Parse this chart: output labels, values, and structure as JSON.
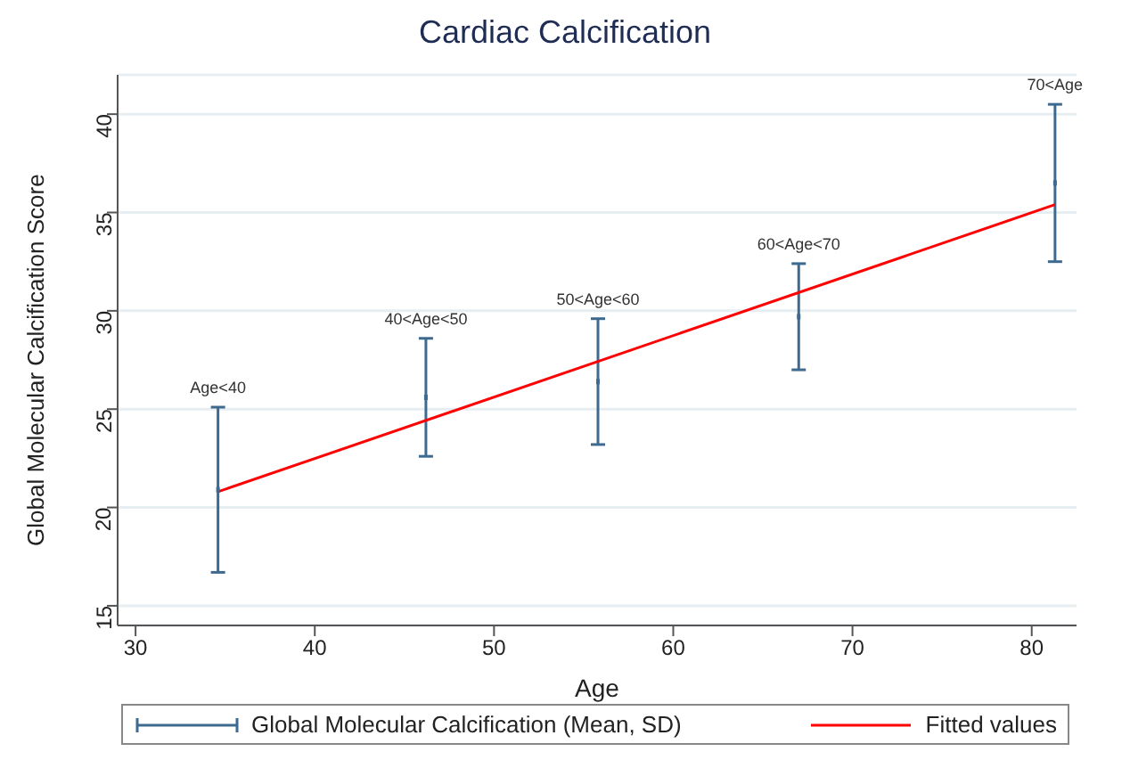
{
  "chart_data": {
    "type": "scatter",
    "title": "Cardiac Calcification",
    "xlabel": "Age",
    "ylabel": "Global Molecular Calcification Score",
    "xlim": [
      29,
      82.5
    ],
    "xticks": [
      30,
      40,
      50,
      60,
      70,
      80
    ],
    "ylim": [
      14,
      42
    ],
    "yticks": [
      15,
      20,
      25,
      30,
      35,
      40
    ],
    "grid": "y",
    "legend": "bottom",
    "series": [
      {
        "name": "Global Molecular Calcification (Mean, SD)",
        "color": "#3e6a8f",
        "x": [
          34.6,
          46.2,
          55.8,
          67.0,
          81.3
        ],
        "values": [
          20.9,
          25.6,
          26.4,
          29.7,
          36.5
        ],
        "errors": [
          4.2,
          3.0,
          3.2,
          2.7,
          4.0
        ]
      },
      {
        "name": "Fitted values",
        "type": "line",
        "marker": "none",
        "color": "#ff0000",
        "x": [
          34.6,
          81.3
        ],
        "values": [
          20.8,
          35.4
        ]
      }
    ],
    "annotations": [
      {
        "text": "Age<40",
        "x": 34.6,
        "y": 25.1
      },
      {
        "text": "40<Age<50",
        "x": 46.2,
        "y": 28.6
      },
      {
        "text": "50<Age<60",
        "x": 55.8,
        "y": 29.6
      },
      {
        "text": "60<Age<70",
        "x": 67.0,
        "y": 32.4
      },
      {
        "text": "70<Age",
        "x": 81.3,
        "y": 40.5
      }
    ]
  }
}
